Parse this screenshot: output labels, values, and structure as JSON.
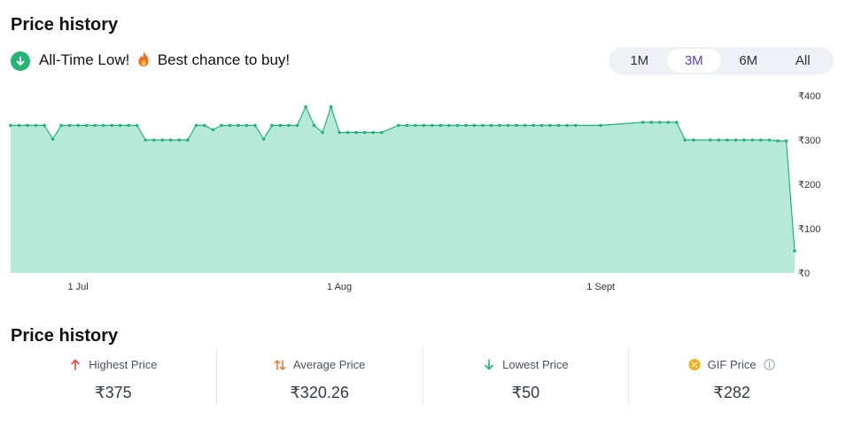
{
  "header": {
    "title": "Price history",
    "low_message_before": "All-Time Low!",
    "low_message_after": "Best chance to buy!"
  },
  "tabs": [
    {
      "label": "1M",
      "active": false
    },
    {
      "label": "3M",
      "active": true
    },
    {
      "label": "6M",
      "active": false
    },
    {
      "label": "All",
      "active": false
    }
  ],
  "chart_data": {
    "type": "area",
    "x_tick_labels": [
      "1 Jul",
      "1 Aug",
      "1 Sept"
    ],
    "y_tick_labels": [
      "₹400",
      "₹300",
      "₹200",
      "₹100",
      "₹0"
    ],
    "ylim": [
      0,
      400
    ],
    "grid": false,
    "colors": {
      "line": "#1fb57a",
      "fill": "#b6e9d8"
    },
    "series": [
      {
        "x": [
          "2024-06-23",
          "2024-06-24",
          "2024-06-25",
          "2024-06-26",
          "2024-06-27",
          "2024-06-28",
          "2024-06-29",
          "2024-06-30",
          "2024-07-01",
          "2024-07-02",
          "2024-07-03",
          "2024-07-04",
          "2024-07-05",
          "2024-07-06",
          "2024-07-07",
          "2024-07-08",
          "2024-07-09",
          "2024-07-10",
          "2024-07-11",
          "2024-07-12",
          "2024-07-13",
          "2024-07-14",
          "2024-07-15",
          "2024-07-16",
          "2024-07-17",
          "2024-07-18",
          "2024-07-19",
          "2024-07-20",
          "2024-07-21",
          "2024-07-22",
          "2024-07-23",
          "2024-07-24",
          "2024-07-25",
          "2024-07-26",
          "2024-07-27",
          "2024-07-28",
          "2024-07-29",
          "2024-07-30",
          "2024-07-31",
          "2024-08-01",
          "2024-08-02",
          "2024-08-03",
          "2024-08-04",
          "2024-08-05",
          "2024-08-06",
          "2024-08-08",
          "2024-08-09",
          "2024-08-10",
          "2024-08-11",
          "2024-08-12",
          "2024-08-13",
          "2024-08-14",
          "2024-08-15",
          "2024-08-16",
          "2024-08-17",
          "2024-08-18",
          "2024-08-19",
          "2024-08-20",
          "2024-08-21",
          "2024-08-22",
          "2024-08-23",
          "2024-08-24",
          "2024-08-25",
          "2024-08-26",
          "2024-08-27",
          "2024-08-28",
          "2024-08-29",
          "2024-09-01",
          "2024-09-06",
          "2024-09-07",
          "2024-09-08",
          "2024-09-09",
          "2024-09-10",
          "2024-09-11",
          "2024-09-12",
          "2024-09-14",
          "2024-09-15",
          "2024-09-16",
          "2024-09-17",
          "2024-09-18",
          "2024-09-19",
          "2024-09-20",
          "2024-09-21",
          "2024-09-22",
          "2024-09-23",
          "2024-09-24"
        ],
        "values": [
          333,
          333,
          333,
          333,
          333,
          302,
          333,
          333,
          333,
          333,
          333,
          333,
          333,
          333,
          333,
          333,
          300,
          300,
          300,
          300,
          300,
          300,
          333,
          333,
          323,
          333,
          333,
          333,
          333,
          333,
          302,
          333,
          333,
          333,
          333,
          375,
          333,
          317,
          375,
          317,
          317,
          317,
          317,
          317,
          317,
          333,
          333,
          333,
          333,
          333,
          333,
          333,
          333,
          333,
          333,
          333,
          333,
          333,
          333,
          333,
          333,
          333,
          333,
          333,
          333,
          333,
          333,
          333,
          340,
          340,
          340,
          340,
          340,
          300,
          300,
          300,
          300,
          300,
          300,
          300,
          300,
          300,
          300,
          298,
          298,
          50
        ]
      }
    ]
  },
  "stats_title": "Price history",
  "stats": [
    {
      "label": "Highest Price",
      "value": "₹375",
      "icon": "arrow-up-icon",
      "color": "#e5483b"
    },
    {
      "label": "Average Price",
      "value": "₹320.26",
      "icon": "swap-arrows-icon",
      "color": "#e8742b"
    },
    {
      "label": "Lowest Price",
      "value": "₹50",
      "icon": "arrow-down-icon",
      "color": "#22b573"
    },
    {
      "label": "GIF Price",
      "value": "₹282",
      "icon": "badge-icon",
      "color": "#f2b01e"
    }
  ]
}
